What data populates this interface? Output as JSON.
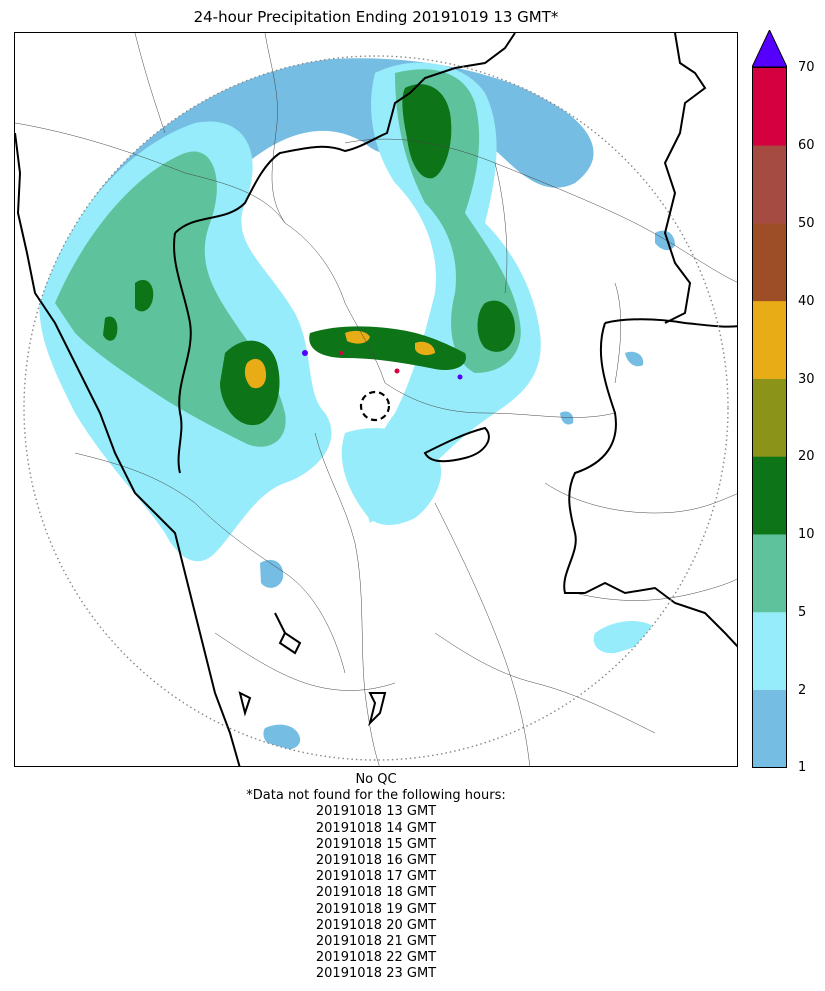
{
  "title": "24-hour Precipitation Ending 20191019 13 GMT*",
  "colorbar": {
    "ticks": [
      "1",
      "2",
      "5",
      "10",
      "20",
      "30",
      "40",
      "50",
      "60",
      "70"
    ],
    "bins": [
      {
        "from": 1,
        "to": 2,
        "color": "#76bde3"
      },
      {
        "from": 2,
        "to": 5,
        "color": "#96ecfa"
      },
      {
        "from": 5,
        "to": 10,
        "color": "#5ec39c"
      },
      {
        "from": 10,
        "to": 20,
        "color": "#0e7418"
      },
      {
        "from": 20,
        "to": 30,
        "color": "#8b9418"
      },
      {
        "from": 30,
        "to": 40,
        "color": "#e7ac16"
      },
      {
        "from": 40,
        "to": 50,
        "color": "#9d4e26"
      },
      {
        "from": 50,
        "to": 60,
        "color": "#a54b41"
      },
      {
        "from": 60,
        "to": 70,
        "color": "#d5003f"
      }
    ],
    "over_color": "#5500ff"
  },
  "map": {
    "range_ring_style": "dotted-gray",
    "radar_center_marker": "dashed-circle",
    "colors": {
      "light_blue": "#76bde3",
      "cyan": "#96ecfa",
      "green": "#5ec39c",
      "dark_green": "#0e7418",
      "orange": "#e7ac16",
      "magenta": "#d5003f",
      "purple": "#5500ff"
    }
  },
  "notes": {
    "qc": "No QC",
    "missing_header": "*Data not found for the following hours:",
    "missing_hours": [
      "20191018 13 GMT",
      "20191018 14 GMT",
      "20191018 15 GMT",
      "20191018 16 GMT",
      "20191018 17 GMT",
      "20191018 18 GMT",
      "20191018 19 GMT",
      "20191018 20 GMT",
      "20191018 21 GMT",
      "20191018 22 GMT",
      "20191018 23 GMT"
    ]
  }
}
